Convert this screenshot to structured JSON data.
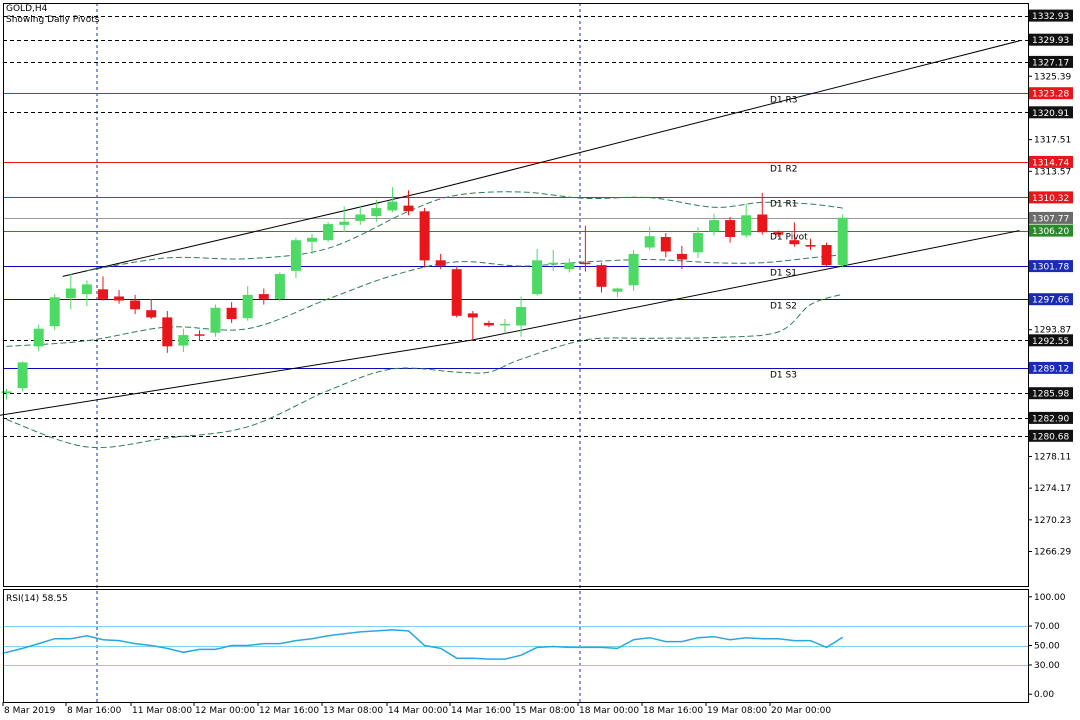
{
  "header": {
    "symbol": "GOLD,H4",
    "indicator": "Showing Daily Pivots"
  },
  "rsi": {
    "label": "RSI(14) 58.55"
  },
  "colors": {
    "bull": "#4cd964",
    "bear": "#e8161b",
    "axis": "#000000",
    "blue_line": "#0a0ab8",
    "red_line": "#e8161b",
    "green_line": "#2a8a2a",
    "ma": "#2e7d55",
    "rsi_line": "#2aa7e0",
    "rsi_level": "#7fd1f0",
    "highlight": "#1a1a1a",
    "gray_tag": "#6b6b6b",
    "pivot_tag": "#2a8a2a",
    "red_tag": "#e8161b",
    "blue_tag": "#1b2bb8"
  },
  "chart_data": [
    {
      "type": "candlestick",
      "title": "GOLD,H4",
      "subtitle": "Showing Daily Pivots",
      "ylim": [
        1262.0,
        1334.5
      ],
      "y_ticks": [
        1332.93,
        1329.93,
        1327.17,
        1325.39,
        1323.28,
        1320.91,
        1317.51,
        1314.74,
        1313.57,
        1310.32,
        1307.77,
        1306.2,
        1301.78,
        1297.66,
        1293.87,
        1292.55,
        1289.12,
        1285.98,
        1282.9,
        1280.68,
        1278.11,
        1274.17,
        1270.23,
        1266.29
      ],
      "y_tags": [
        {
          "value": 1332.93,
          "style": "dark"
        },
        {
          "value": 1329.93,
          "style": "dark"
        },
        {
          "value": 1327.17,
          "style": "dark"
        },
        {
          "value": 1323.28,
          "style": "red"
        },
        {
          "value": 1320.91,
          "style": "dark"
        },
        {
          "value": 1314.74,
          "style": "red"
        },
        {
          "value": 1310.32,
          "style": "red"
        },
        {
          "value": 1307.77,
          "style": "gray"
        },
        {
          "value": 1306.2,
          "style": "pivot"
        },
        {
          "value": 1301.78,
          "style": "blue"
        },
        {
          "value": 1297.66,
          "style": "blue"
        },
        {
          "value": 1292.55,
          "style": "dark"
        },
        {
          "value": 1289.12,
          "style": "blue"
        },
        {
          "value": 1285.98,
          "style": "dark"
        },
        {
          "value": 1282.9,
          "style": "dark"
        },
        {
          "value": 1280.68,
          "style": "dark"
        }
      ],
      "x_ticks": [
        "8 Mar 2019",
        "8 Mar 16:00",
        "11 Mar 08:00",
        "12 Mar 00:00",
        "12 Mar 16:00",
        "13 Mar 08:00",
        "14 Mar 00:00",
        "14 Mar 16:00",
        "15 Mar 08:00",
        "18 Mar 00:00",
        "18 Mar 16:00",
        "19 Mar 08:00",
        "20 Mar 00:00"
      ],
      "pivots": [
        {
          "name": "D1 R3",
          "value": 1323.28,
          "color": "red"
        },
        {
          "name": "D1 R2",
          "value": 1314.74,
          "color": "red"
        },
        {
          "name": "D1 R1",
          "value": 1310.32,
          "color": "red"
        },
        {
          "name": "D1 Pivot",
          "value": 1306.2,
          "color": "green"
        },
        {
          "name": "D1 S1",
          "value": 1301.78,
          "color": "blue"
        },
        {
          "name": "D1 S2",
          "value": 1297.66,
          "color": "blue"
        },
        {
          "name": "D1 S3",
          "value": 1289.12,
          "color": "blue"
        }
      ],
      "dashed_levels": [
        1332.93,
        1329.93,
        1327.17,
        1320.91,
        1292.55,
        1285.98,
        1282.9,
        1280.68
      ],
      "current_price_line": 1307.77,
      "candles": [
        {
          "o": 1286.0,
          "h": 1286.5,
          "l": 1285.2,
          "c": 1286.2
        },
        {
          "o": 1286.6,
          "h": 1289.9,
          "l": 1286.2,
          "c": 1289.8
        },
        {
          "o": 1291.8,
          "h": 1294.5,
          "l": 1291.2,
          "c": 1294.0
        },
        {
          "o": 1294.3,
          "h": 1298.3,
          "l": 1293.8,
          "c": 1297.9
        },
        {
          "o": 1297.8,
          "h": 1300.8,
          "l": 1296.4,
          "c": 1299.0
        },
        {
          "o": 1298.3,
          "h": 1300.0,
          "l": 1296.8,
          "c": 1299.5
        },
        {
          "o": 1298.9,
          "h": 1300.5,
          "l": 1297.5,
          "c": 1297.7
        },
        {
          "o": 1298.0,
          "h": 1298.8,
          "l": 1297.1,
          "c": 1297.5
        },
        {
          "o": 1297.5,
          "h": 1298.2,
          "l": 1295.8,
          "c": 1296.4
        },
        {
          "o": 1296.3,
          "h": 1297.7,
          "l": 1295.2,
          "c": 1295.4
        },
        {
          "o": 1295.4,
          "h": 1296.2,
          "l": 1291.0,
          "c": 1291.8
        },
        {
          "o": 1291.9,
          "h": 1294.0,
          "l": 1291.1,
          "c": 1293.2
        },
        {
          "o": 1293.3,
          "h": 1293.8,
          "l": 1292.5,
          "c": 1293.2
        },
        {
          "o": 1293.5,
          "h": 1297.0,
          "l": 1293.0,
          "c": 1296.6
        },
        {
          "o": 1296.6,
          "h": 1297.3,
          "l": 1294.7,
          "c": 1295.2
        },
        {
          "o": 1295.3,
          "h": 1299.3,
          "l": 1295.0,
          "c": 1298.2
        },
        {
          "o": 1298.3,
          "h": 1299.0,
          "l": 1297.0,
          "c": 1297.7
        },
        {
          "o": 1297.7,
          "h": 1301.0,
          "l": 1297.4,
          "c": 1300.8
        },
        {
          "o": 1301.2,
          "h": 1305.3,
          "l": 1300.3,
          "c": 1305.0
        },
        {
          "o": 1304.8,
          "h": 1305.8,
          "l": 1303.3,
          "c": 1305.3
        },
        {
          "o": 1305.0,
          "h": 1307.3,
          "l": 1304.8,
          "c": 1307.0
        },
        {
          "o": 1306.9,
          "h": 1309.2,
          "l": 1306.0,
          "c": 1307.3
        },
        {
          "o": 1307.4,
          "h": 1309.3,
          "l": 1306.9,
          "c": 1308.2
        },
        {
          "o": 1308.0,
          "h": 1310.0,
          "l": 1307.3,
          "c": 1309.0
        },
        {
          "o": 1308.7,
          "h": 1311.6,
          "l": 1308.5,
          "c": 1309.8
        },
        {
          "o": 1309.3,
          "h": 1311.2,
          "l": 1308.1,
          "c": 1308.6
        },
        {
          "o": 1308.6,
          "h": 1309.0,
          "l": 1301.6,
          "c": 1302.5
        },
        {
          "o": 1302.5,
          "h": 1303.3,
          "l": 1301.4,
          "c": 1301.8
        },
        {
          "o": 1301.4,
          "h": 1301.8,
          "l": 1295.4,
          "c": 1295.6
        },
        {
          "o": 1295.9,
          "h": 1296.2,
          "l": 1292.5,
          "c": 1295.4
        },
        {
          "o": 1294.7,
          "h": 1295.0,
          "l": 1294.2,
          "c": 1294.4
        },
        {
          "o": 1294.6,
          "h": 1295.2,
          "l": 1293.4,
          "c": 1294.6
        },
        {
          "o": 1294.4,
          "h": 1298.0,
          "l": 1293.0,
          "c": 1296.7
        },
        {
          "o": 1298.3,
          "h": 1303.9,
          "l": 1298.1,
          "c": 1302.5
        },
        {
          "o": 1302.0,
          "h": 1303.8,
          "l": 1301.2,
          "c": 1302.2
        },
        {
          "o": 1301.4,
          "h": 1302.7,
          "l": 1301.0,
          "c": 1302.2
        },
        {
          "o": 1302.2,
          "h": 1306.8,
          "l": 1301.1,
          "c": 1302.1
        },
        {
          "o": 1301.9,
          "h": 1302.2,
          "l": 1298.5,
          "c": 1299.2
        },
        {
          "o": 1298.6,
          "h": 1299.1,
          "l": 1297.9,
          "c": 1299.0
        },
        {
          "o": 1299.4,
          "h": 1303.8,
          "l": 1298.7,
          "c": 1303.3
        },
        {
          "o": 1304.1,
          "h": 1306.7,
          "l": 1303.8,
          "c": 1305.5
        },
        {
          "o": 1305.4,
          "h": 1305.9,
          "l": 1302.9,
          "c": 1303.6
        },
        {
          "o": 1303.3,
          "h": 1304.3,
          "l": 1301.4,
          "c": 1302.6
        },
        {
          "o": 1303.5,
          "h": 1306.6,
          "l": 1302.8,
          "c": 1305.9
        },
        {
          "o": 1306.1,
          "h": 1308.3,
          "l": 1305.6,
          "c": 1307.5
        },
        {
          "o": 1307.5,
          "h": 1307.9,
          "l": 1304.7,
          "c": 1305.4
        },
        {
          "o": 1305.6,
          "h": 1309.5,
          "l": 1305.3,
          "c": 1308.1
        },
        {
          "o": 1308.2,
          "h": 1310.9,
          "l": 1305.7,
          "c": 1306.0
        },
        {
          "o": 1306.0,
          "h": 1306.2,
          "l": 1305.4,
          "c": 1305.7
        },
        {
          "o": 1305.0,
          "h": 1307.2,
          "l": 1304.2,
          "c": 1304.5
        },
        {
          "o": 1304.4,
          "h": 1305.2,
          "l": 1303.8,
          "c": 1304.2
        },
        {
          "o": 1304.4,
          "h": 1304.7,
          "l": 1301.8,
          "c": 1301.9
        },
        {
          "o": 1301.9,
          "h": 1308.2,
          "l": 1301.6,
          "c": 1307.8
        }
      ],
      "ma_upper": [
        [
          5,
          1301.2
        ],
        [
          10,
          1302.8
        ],
        [
          15,
          1302.7
        ],
        [
          20,
          1304.0
        ],
        [
          25,
          1308.6
        ],
        [
          28,
          1310.6
        ],
        [
          32,
          1311.0
        ],
        [
          36,
          1310.2
        ],
        [
          40,
          1310.3
        ],
        [
          44,
          1309.1
        ],
        [
          47,
          1309.7
        ],
        [
          50,
          1309.5
        ],
        [
          52,
          1309.0
        ]
      ],
      "ma_middle": [
        [
          0,
          1291.8
        ],
        [
          5,
          1292.5
        ],
        [
          10,
          1294.2
        ],
        [
          15,
          1294.0
        ],
        [
          20,
          1297.7
        ],
        [
          24,
          1300.6
        ],
        [
          28,
          1302.3
        ],
        [
          32,
          1301.8
        ],
        [
          36,
          1302.3
        ],
        [
          40,
          1302.6
        ],
        [
          44,
          1302.2
        ],
        [
          47,
          1302.2
        ],
        [
          50,
          1302.8
        ],
        [
          52,
          1303.2
        ]
      ],
      "ma_lower": [
        [
          0,
          1282.7
        ],
        [
          5,
          1279.3
        ],
        [
          10,
          1280.4
        ],
        [
          15,
          1281.8
        ],
        [
          20,
          1286.3
        ],
        [
          24,
          1289.0
        ],
        [
          28,
          1288.6
        ],
        [
          30,
          1288.6
        ],
        [
          32,
          1290.2
        ],
        [
          36,
          1292.6
        ],
        [
          40,
          1292.8
        ],
        [
          44,
          1292.9
        ],
        [
          48,
          1293.6
        ],
        [
          50,
          1297.0
        ],
        [
          52,
          1298.3
        ]
      ],
      "trend_upper": [
        [
          3.5,
          1300.5
        ],
        [
          26,
          1311.0
        ],
        [
          63,
          1329.8
        ]
      ],
      "trend_lower": [
        [
          -0.5,
          1283.2
        ],
        [
          29,
          1292.6
        ],
        [
          63,
          1306.2
        ]
      ]
    },
    {
      "type": "line",
      "title": "RSI(14) 58.55",
      "ylim": [
        -8,
        108
      ],
      "y_ticks": [
        100.0,
        70.0,
        50.0,
        30.0,
        0.0
      ],
      "levels": [
        70,
        50,
        30
      ],
      "values": [
        42,
        47,
        52,
        57,
        57,
        60,
        56,
        55,
        52,
        50,
        47,
        43,
        46,
        46,
        50,
        50,
        52,
        52,
        55,
        57,
        60,
        62,
        64,
        65,
        66,
        65,
        50,
        47,
        37,
        37,
        36,
        36,
        40,
        48,
        49,
        48,
        48,
        48,
        47,
        56,
        58,
        54,
        54,
        58,
        59,
        56,
        58,
        57,
        57,
        55,
        55,
        48,
        58.55
      ]
    }
  ]
}
